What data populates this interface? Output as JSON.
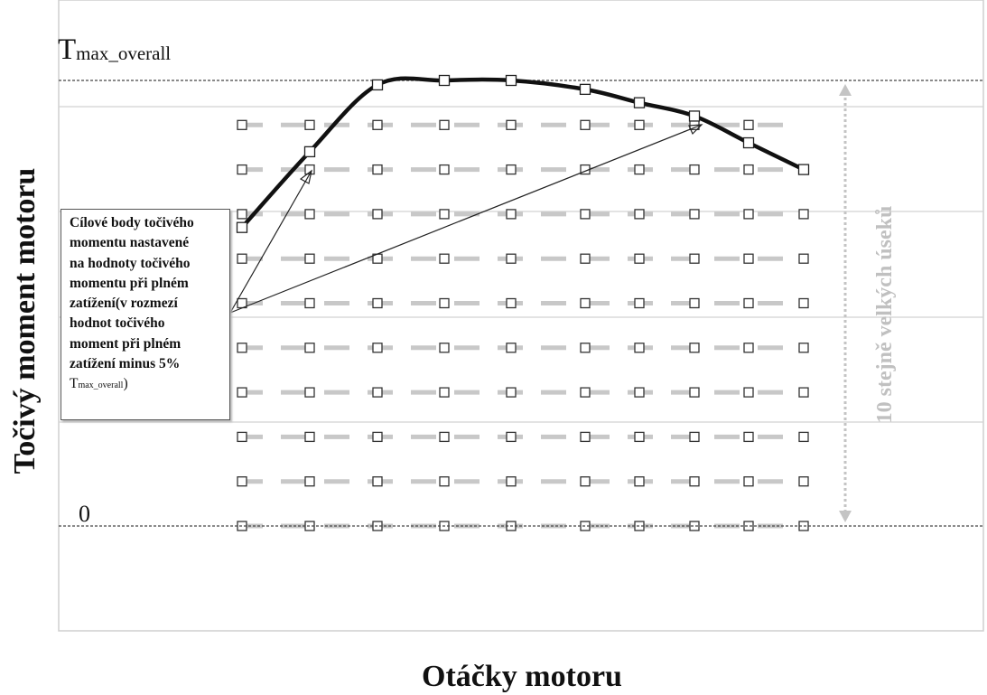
{
  "chart_data": {
    "type": "line",
    "title": "",
    "xlabel": "Otáčky motoru",
    "ylabel": "Točivý moment motoru",
    "y_max_label": {
      "main": "T",
      "sub": "max_overall"
    },
    "y_zero_label": "0",
    "range_annotation": "10 stejně velkých úseků",
    "grid": true,
    "x_points": [
      1,
      2,
      3,
      4,
      5,
      6,
      7,
      8,
      9,
      10
    ],
    "levels": [
      0,
      1,
      2,
      3,
      4,
      5,
      6,
      7,
      8,
      9
    ],
    "level_scale_max": 10,
    "full_load_curve": {
      "x": [
        1,
        2,
        3,
        4,
        5,
        6,
        7,
        8,
        9,
        10
      ],
      "y": [
        6.7,
        8.4,
        9.9,
        10.0,
        10.0,
        9.8,
        9.5,
        9.2,
        8.6,
        8.0
      ]
    },
    "annotation": {
      "line1": "Cílové body točivého",
      "line2": "momentu nastavené",
      "line3": "na hodnoty točivého",
      "line4": "momentu při plném",
      "line5": "zatížení(v rozmezí",
      "line6": "hodnot točivého",
      "line7": "moment při plném",
      "line8": "zatížení minus 5%",
      "sym": "T",
      "sub": "max_overall",
      "close": ")"
    },
    "colors": {
      "grid_dash": "#c8c8c8",
      "curve": "#111111",
      "range_annotation": "#c0c0c0",
      "marker_fill": "#ffffff"
    }
  }
}
